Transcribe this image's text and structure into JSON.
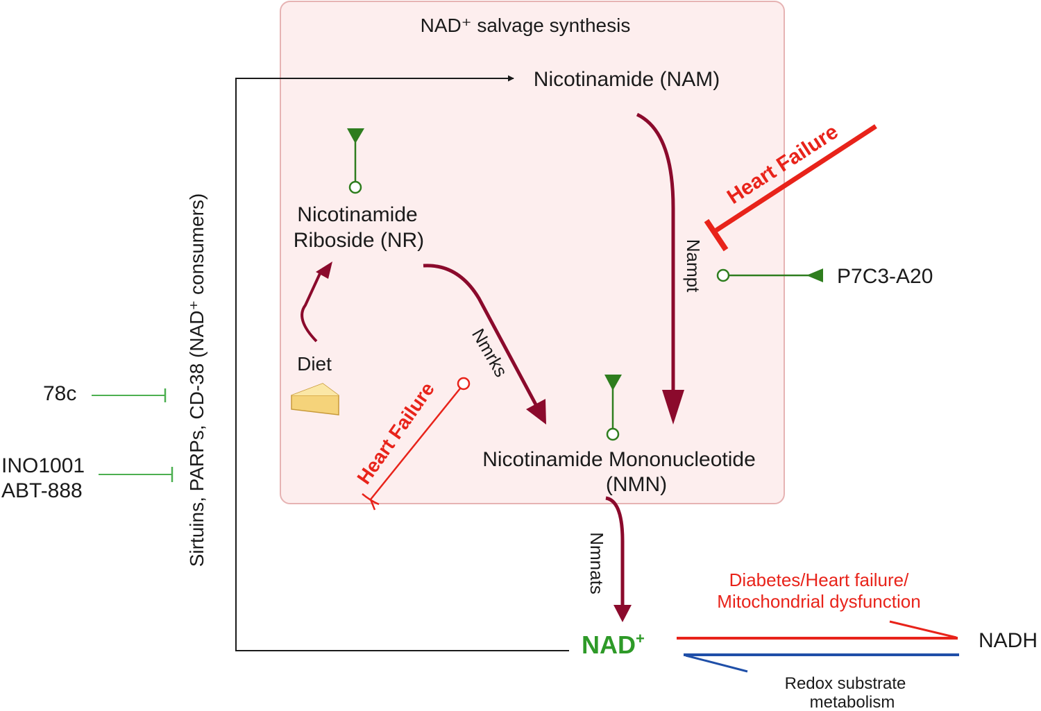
{
  "box": {
    "title": "NAD⁺ salvage synthesis",
    "fill": "#fdeeee",
    "stroke": "#e6b3b3"
  },
  "nodes": {
    "nam": "Nicotinamide (NAM)",
    "nr_line1": "Nicotinamide",
    "nr_line2": "Riboside (NR)",
    "diet": "Diet",
    "nmn_line1": "Nicotinamide Mononucleotide",
    "nmn_line2": "(NMN)",
    "nad": "NAD",
    "nad_sup": "+",
    "nadh": "NADH"
  },
  "enzymes": {
    "nampt": "Nampt",
    "nmrks": "Nmrks",
    "nmnats": "Nmnats"
  },
  "consumers": "Sirtuins, PARPs, CD-38 (NAD⁺ consumers)",
  "inhibitors": {
    "c78": "78c",
    "ino1001": "INO1001",
    "abt888": "ABT-888"
  },
  "activators": {
    "p7c3": "P7C3-A20"
  },
  "disease": {
    "heart_failure_1": "Heart Failure",
    "heart_failure_2": "Heart Failure"
  },
  "redox": {
    "top_line1": "Diabetes/Heart failure/",
    "top_line2": "Mitochondrial dysfunction",
    "bottom_line1": "Redox substrate",
    "bottom_line2": "metabolism"
  },
  "icons": {
    "diet": "cheese-icon"
  },
  "colors": {
    "pathway_arrow": "#8b0a2c",
    "green": "#2e7d1e",
    "light_green": "#4caf50",
    "red": "#e8231a",
    "blue": "#1f4fa8",
    "black": "#1a1a1a",
    "nad_green": "#2e9a28",
    "cheese": "#f5d37a"
  }
}
